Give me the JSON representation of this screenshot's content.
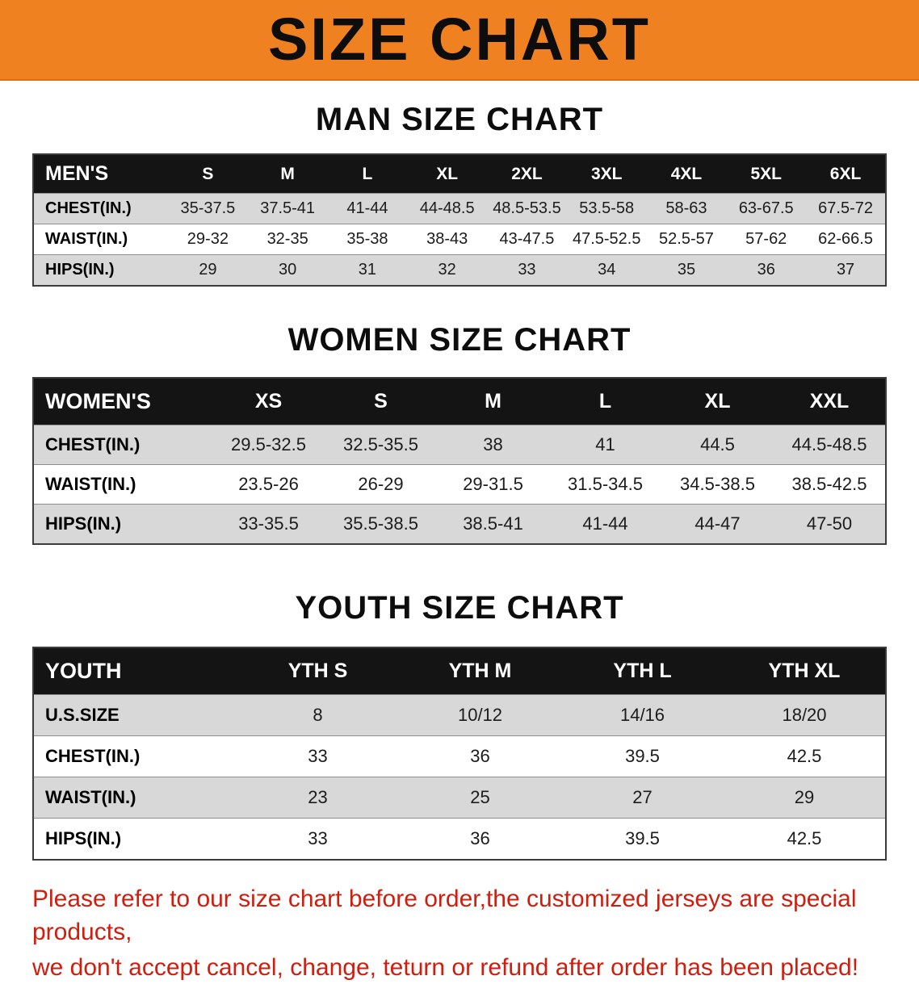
{
  "banner": {
    "title": "SIZE CHART"
  },
  "men": {
    "heading": "MAN SIZE CHART",
    "header": [
      "MEN'S",
      "S",
      "M",
      "L",
      "XL",
      "2XL",
      "3XL",
      "4XL",
      "5XL",
      "6XL"
    ],
    "rows": [
      [
        "CHEST(IN.)",
        "35-37.5",
        "37.5-41",
        "41-44",
        "44-48.5",
        "48.5-53.5",
        "53.5-58",
        "58-63",
        "63-67.5",
        "67.5-72"
      ],
      [
        "WAIST(IN.)",
        "29-32",
        "32-35",
        "35-38",
        "38-43",
        "43-47.5",
        "47.5-52.5",
        "52.5-57",
        "57-62",
        "62-66.5"
      ],
      [
        "HIPS(IN.)",
        "29",
        "30",
        "31",
        "32",
        "33",
        "34",
        "35",
        "36",
        "37"
      ]
    ]
  },
  "women": {
    "heading": "WOMEN SIZE CHART",
    "header": [
      "WOMEN'S",
      "XS",
      "S",
      "M",
      "L",
      "XL",
      "XXL"
    ],
    "rows": [
      [
        "CHEST(IN.)",
        "29.5-32.5",
        "32.5-35.5",
        "38",
        "41",
        "44.5",
        "44.5-48.5"
      ],
      [
        "WAIST(IN.)",
        "23.5-26",
        "26-29",
        "29-31.5",
        "31.5-34.5",
        "34.5-38.5",
        "38.5-42.5"
      ],
      [
        "HIPS(IN.)",
        "33-35.5",
        "35.5-38.5",
        "38.5-41",
        "41-44",
        "44-47",
        "47-50"
      ]
    ]
  },
  "youth": {
    "heading": "YOUTH SIZE CHART",
    "header": [
      "YOUTH",
      "YTH S",
      "YTH M",
      "YTH L",
      "YTH XL"
    ],
    "rows": [
      [
        "U.S.SIZE",
        "8",
        "10/12",
        "14/16",
        "18/20"
      ],
      [
        "CHEST(IN.)",
        "33",
        "36",
        "39.5",
        "42.5"
      ],
      [
        "WAIST(IN.)",
        "23",
        "25",
        "27",
        "29"
      ],
      [
        "HIPS(IN.)",
        "33",
        "36",
        "39.5",
        "42.5"
      ]
    ]
  },
  "disclaimer": {
    "line1": "Please refer to our size chart before order,the customized jerseys are special products,",
    "line2": "we don't accept cancel, change, teturn or refund after order has been placed!"
  },
  "colors": {
    "banner_bg": "#ef8120",
    "header_bg": "#141414",
    "stripe": "#d8d8d8",
    "disclaimer_red": "#cf1d0e"
  }
}
